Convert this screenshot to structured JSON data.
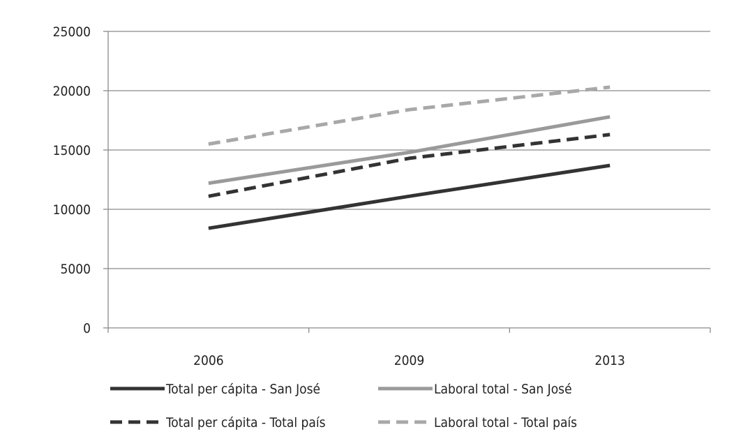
{
  "chart_data": {
    "type": "line",
    "title": "",
    "xlabel": "",
    "ylabel": "",
    "categories": [
      "2006",
      "2009",
      "2013"
    ],
    "ylim": [
      0,
      25000
    ],
    "yticks": [
      0,
      5000,
      10000,
      15000,
      20000,
      25000
    ],
    "ytick_labels": [
      "0",
      "5000",
      "10000",
      "15000",
      "20000",
      "25000"
    ],
    "grid": "horizontal",
    "legend_position": "bottom",
    "series": [
      {
        "name": "Total per cápita  - San José",
        "values": [
          8400,
          11100,
          13700
        ],
        "color": "#333333",
        "dash": "solid"
      },
      {
        "name": "Laboral total  - San José",
        "values": [
          12200,
          14800,
          17800
        ],
        "color": "#9a9a9a",
        "dash": "solid"
      },
      {
        "name": "Total per cápita  - Total país",
        "values": [
          11100,
          14300,
          16300
        ],
        "color": "#333333",
        "dash": "dashed"
      },
      {
        "name": "Laboral total  - Total país",
        "values": [
          15500,
          18400,
          20300
        ],
        "color": "#a8a8a8",
        "dash": "dashed"
      }
    ]
  }
}
